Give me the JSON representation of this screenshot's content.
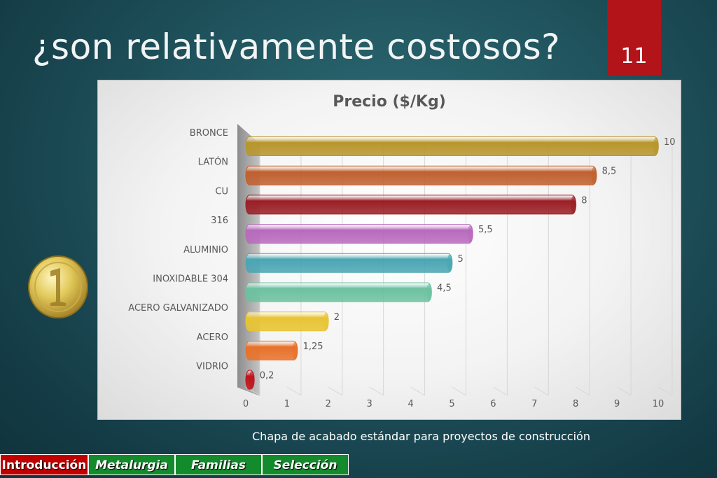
{
  "slide": {
    "title": "¿son relativamente costosos?",
    "page_number": "11",
    "caption": "Chapa de acabado estándar para proyectos de construcción"
  },
  "nav": {
    "tabs": [
      {
        "label": "Introducción",
        "active": true
      },
      {
        "label": "Metalurgia",
        "active": false
      },
      {
        "label": "Familias",
        "active": false
      },
      {
        "label": "Selección",
        "active": false
      }
    ]
  },
  "colors": {
    "background": "#1f525c",
    "page_badge": "#b3141a",
    "nav_active": "#c00000",
    "nav_inactive": "#138a2c"
  },
  "icons": {
    "coin": "gold-coin-icon"
  },
  "chart_data": {
    "type": "bar",
    "orientation": "horizontal",
    "title": "Precio ($/Kg)",
    "xlabel": "",
    "ylabel": "",
    "xlim": [
      0,
      10
    ],
    "x_ticks": [
      "0",
      "1",
      "2",
      "3",
      "4",
      "5",
      "6",
      "7",
      "8",
      "9",
      "10"
    ],
    "grid": true,
    "categories": [
      "BRONCE",
      "LATÓN",
      "CU",
      "316",
      "ALUMINIO",
      "INOXIDABLE 304",
      "ACERO GALVANIZADO",
      "ACERO",
      "VIDRIO"
    ],
    "values": [
      10,
      8.5,
      8,
      5.5,
      5,
      4.5,
      2,
      1.25,
      0.2
    ],
    "value_labels": [
      "10",
      "8,5",
      "8",
      "5,5",
      "5",
      "4,5",
      "2",
      "1,25",
      "0,2"
    ],
    "bar_colors": [
      "#b8962c",
      "#c0602f",
      "#9a1f25",
      "#b86abd",
      "#4aa6b3",
      "#6cc1a0",
      "#e8c432",
      "#e8712a",
      "#c0161e"
    ]
  }
}
